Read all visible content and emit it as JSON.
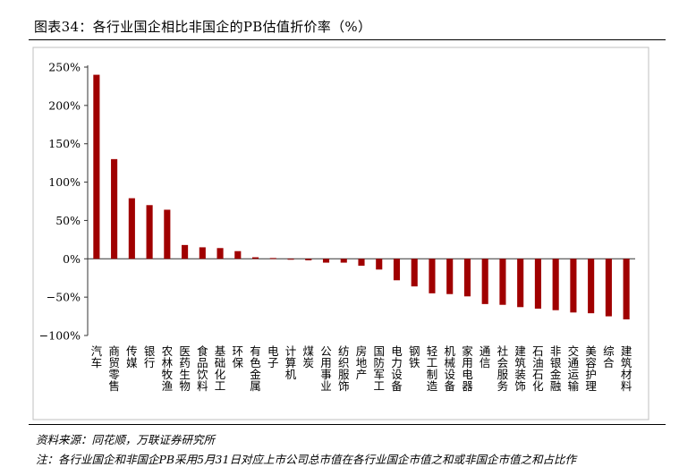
{
  "title": "图表34：各行业国企相比非国企的PB估值折价率（%）",
  "source": "资料来源：同花顺，万联证券研究所",
  "note": "注：各行业国企和非国企PB采用5月31日对应上市公司总市值在各行业国企市值之和或非国企市值之和占比作",
  "colors": {
    "bar": "#a00000",
    "axis": "#333333",
    "frame": "#bfbfbf"
  },
  "chart_data": {
    "type": "bar",
    "categories": [
      "汽车",
      "商贸零售",
      "传媒",
      "银行",
      "农林牧渔",
      "医药生物",
      "食品饮料",
      "基础化工",
      "环保",
      "有色金属",
      "电子",
      "计算机",
      "煤炭",
      "公用事业",
      "纺织服饰",
      "房地产",
      "国防军工",
      "电力设备",
      "钢铁",
      "轻工制造",
      "机械设备",
      "家用电器",
      "通信",
      "社会服务",
      "建筑装饰",
      "石油石化",
      "非银金融",
      "交通运输",
      "美容护理",
      "综合",
      "建筑材料"
    ],
    "values": [
      240,
      130,
      79,
      70,
      64,
      18,
      15,
      14,
      10,
      2,
      1,
      -1,
      -2,
      -5,
      -5,
      -9,
      -14,
      -28,
      -36,
      -45,
      -46,
      -49,
      -59,
      -60,
      -63,
      -65,
      -67,
      -70,
      -71,
      -75,
      -79
    ],
    "ylim": [
      -100,
      250
    ],
    "yticks": [
      -100,
      -50,
      0,
      50,
      100,
      150,
      200,
      250
    ],
    "ytick_labels": [
      "−100%",
      "−50%",
      "0%",
      "50%",
      "100%",
      "150%",
      "200%",
      "250%"
    ],
    "xlabel": "",
    "ylabel": "",
    "legend": "none",
    "grid": false
  }
}
